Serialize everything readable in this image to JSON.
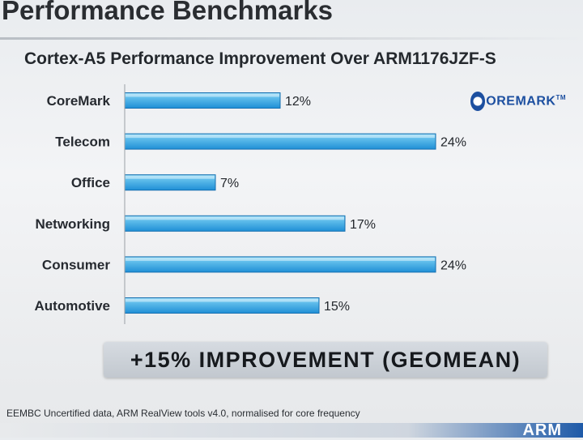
{
  "slide": {
    "title": "Performance Benchmarks",
    "subtitle": "Cortex-A5 Performance Improvement Over ARM1176JZF-S",
    "logo_text": "OREMARK",
    "logo_tm": "TM",
    "callout": "+15% IMPROVEMENT (GEOMEAN)",
    "footnote": "EEMBC Uncertified data, ARM RealView tools v4.0, normalised for core frequency",
    "brand": "ARM"
  },
  "colors": {
    "bar_top": "#7fd3f5",
    "bar_bottom": "#1f8fd6",
    "bar_edge": "#156fb0"
  },
  "chart_data": {
    "type": "bar",
    "orientation": "horizontal",
    "title": "Cortex-A5 Performance Improvement Over ARM1176JZF-S",
    "categories": [
      "CoreMark",
      "Telecom",
      "Office",
      "Networking",
      "Consumer",
      "Automotive"
    ],
    "values": [
      12,
      24,
      7,
      17,
      24,
      15
    ],
    "value_labels": [
      "12%",
      "24%",
      "7%",
      "17%",
      "24%",
      "15%"
    ],
    "unit": "%",
    "xlim": [
      0,
      24
    ],
    "grid": false,
    "legend": "none"
  }
}
